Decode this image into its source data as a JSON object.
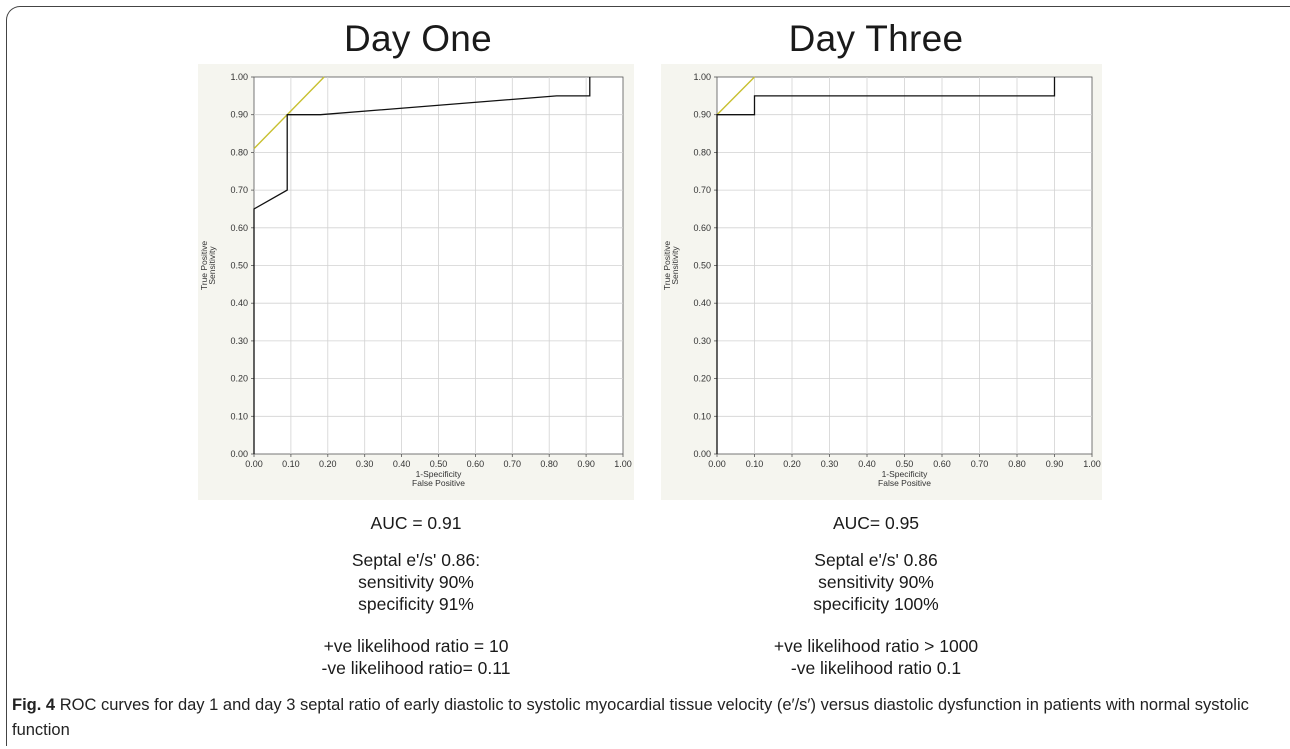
{
  "figure": {
    "caption_label": "Fig. 4",
    "caption_text": "ROC curves for day 1 and day 3 septal ratio of early diastolic to systolic myocardial tissue velocity (e′/s′) versus diastolic dysfunction in patients with normal systolic function"
  },
  "panels": [
    {
      "title": "Day One",
      "auc": "AUC = 0.91",
      "septal": "Septal e'/s' 0.86:",
      "sensitivity": "sensitivity 90%",
      "specificity": "specificity 91%",
      "pos_lr": "+ve likelihood ratio = 10",
      "neg_lr": "-ve likelihood ratio= 0.11"
    },
    {
      "title": "Day Three",
      "auc": "AUC=  0.95",
      "septal": "Septal e'/s' 0.86",
      "sensitivity": "sensitivity 90%",
      "specificity": "specificity 100%",
      "pos_lr": "+ve likelihood ratio > 1000",
      "neg_lr": "-ve likelihood ratio 0.1"
    }
  ],
  "chart_data": [
    {
      "type": "line",
      "title": "Day One",
      "xlabel": [
        "1-Specificity",
        "False Positive"
      ],
      "ylabel": [
        "True Positive",
        "Sensitivity"
      ],
      "xlim": [
        0,
        1
      ],
      "ylim": [
        0,
        1
      ],
      "ticks": [
        "0.00",
        "0.10",
        "0.20",
        "0.30",
        "0.40",
        "0.50",
        "0.60",
        "0.70",
        "0.80",
        "0.90",
        "1.00"
      ],
      "grid": true,
      "colors": {
        "roc": "#111111",
        "tangent": "#c8c030",
        "grid": "#d2d2d2",
        "background": "#f5f5ef"
      },
      "series": [
        {
          "x": [
            0,
            0,
            0.09,
            0.09,
            0.18,
            0.82,
            0.91,
            0.91
          ],
          "y": [
            0,
            0.65,
            0.7,
            0.9,
            0.9,
            0.95,
            0.95,
            1.0
          ]
        }
      ],
      "tangent_line": {
        "x": [
          0,
          0.19
        ],
        "y": [
          0.81,
          1.0
        ]
      }
    },
    {
      "type": "line",
      "title": "Day Three",
      "xlabel": [
        "1-Specificity",
        "False Positive"
      ],
      "ylabel": [
        "True Positive",
        "Sensitivity"
      ],
      "xlim": [
        0,
        1
      ],
      "ylim": [
        0,
        1
      ],
      "ticks": [
        "0.00",
        "0.10",
        "0.20",
        "0.30",
        "0.40",
        "0.50",
        "0.60",
        "0.70",
        "0.80",
        "0.90",
        "1.00"
      ],
      "grid": true,
      "colors": {
        "roc": "#111111",
        "tangent": "#c8c030",
        "grid": "#d2d2d2",
        "background": "#f5f5ef"
      },
      "series": [
        {
          "x": [
            0,
            0,
            0.1,
            0.1,
            0.9,
            0.9
          ],
          "y": [
            0,
            0.9,
            0.9,
            0.95,
            0.95,
            1.0
          ]
        }
      ],
      "tangent_line": {
        "x": [
          0,
          0.1
        ],
        "y": [
          0.9,
          1.0
        ]
      }
    }
  ]
}
